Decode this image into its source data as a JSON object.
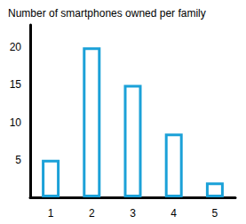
{
  "chart_data": {
    "type": "bar",
    "title": "Number of smartphones owned per family",
    "categories": [
      "1",
      "2",
      "3",
      "4",
      "5"
    ],
    "values": [
      5,
      20,
      15,
      8.5,
      2
    ],
    "color": "#1ba1d8",
    "ylim": [
      0,
      23
    ],
    "yticks": [
      5,
      10,
      15,
      20
    ],
    "grid": false
  }
}
